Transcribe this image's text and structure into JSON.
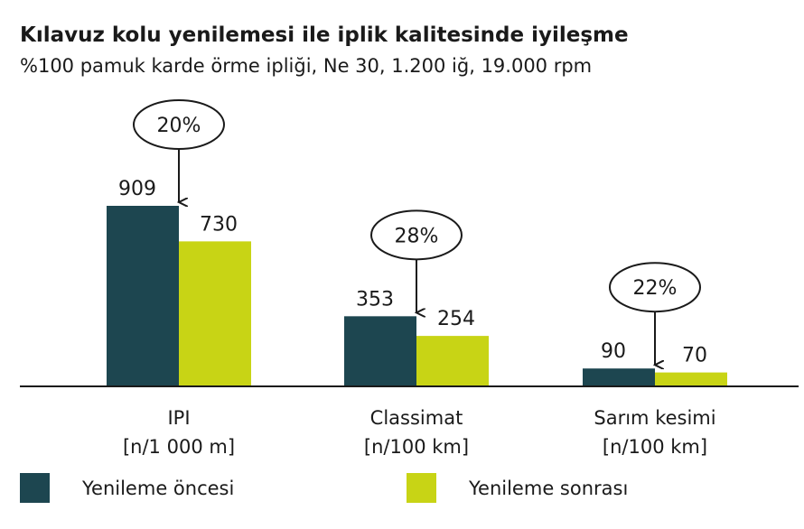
{
  "chart_data": {
    "type": "bar",
    "title": "Kılavuz kolu yenilemesi ile iplik kalitesinde iyileşme",
    "subtitle": "%100 pamuk karde örme ipliği, Ne 30, 1.200 iğ, 19.000 rpm",
    "categories": [
      {
        "name": "IPI",
        "unit": "[n/1 000 m]"
      },
      {
        "name": "Classimat",
        "unit": "[n/100 km]"
      },
      {
        "name": "Sarım kesimi",
        "unit": "[n/100 km]"
      }
    ],
    "series": [
      {
        "name": "Yenileme öncesi",
        "color": "#1d4650",
        "values": [
          909,
          353,
          90
        ]
      },
      {
        "name": "Yenileme sonrası",
        "color": "#c8d415",
        "values": [
          730,
          254,
          70
        ]
      }
    ],
    "improvements": [
      "20%",
      "28%",
      "22%"
    ],
    "ylim": [
      0,
      909
    ],
    "grid": false,
    "legend": "bottom"
  }
}
